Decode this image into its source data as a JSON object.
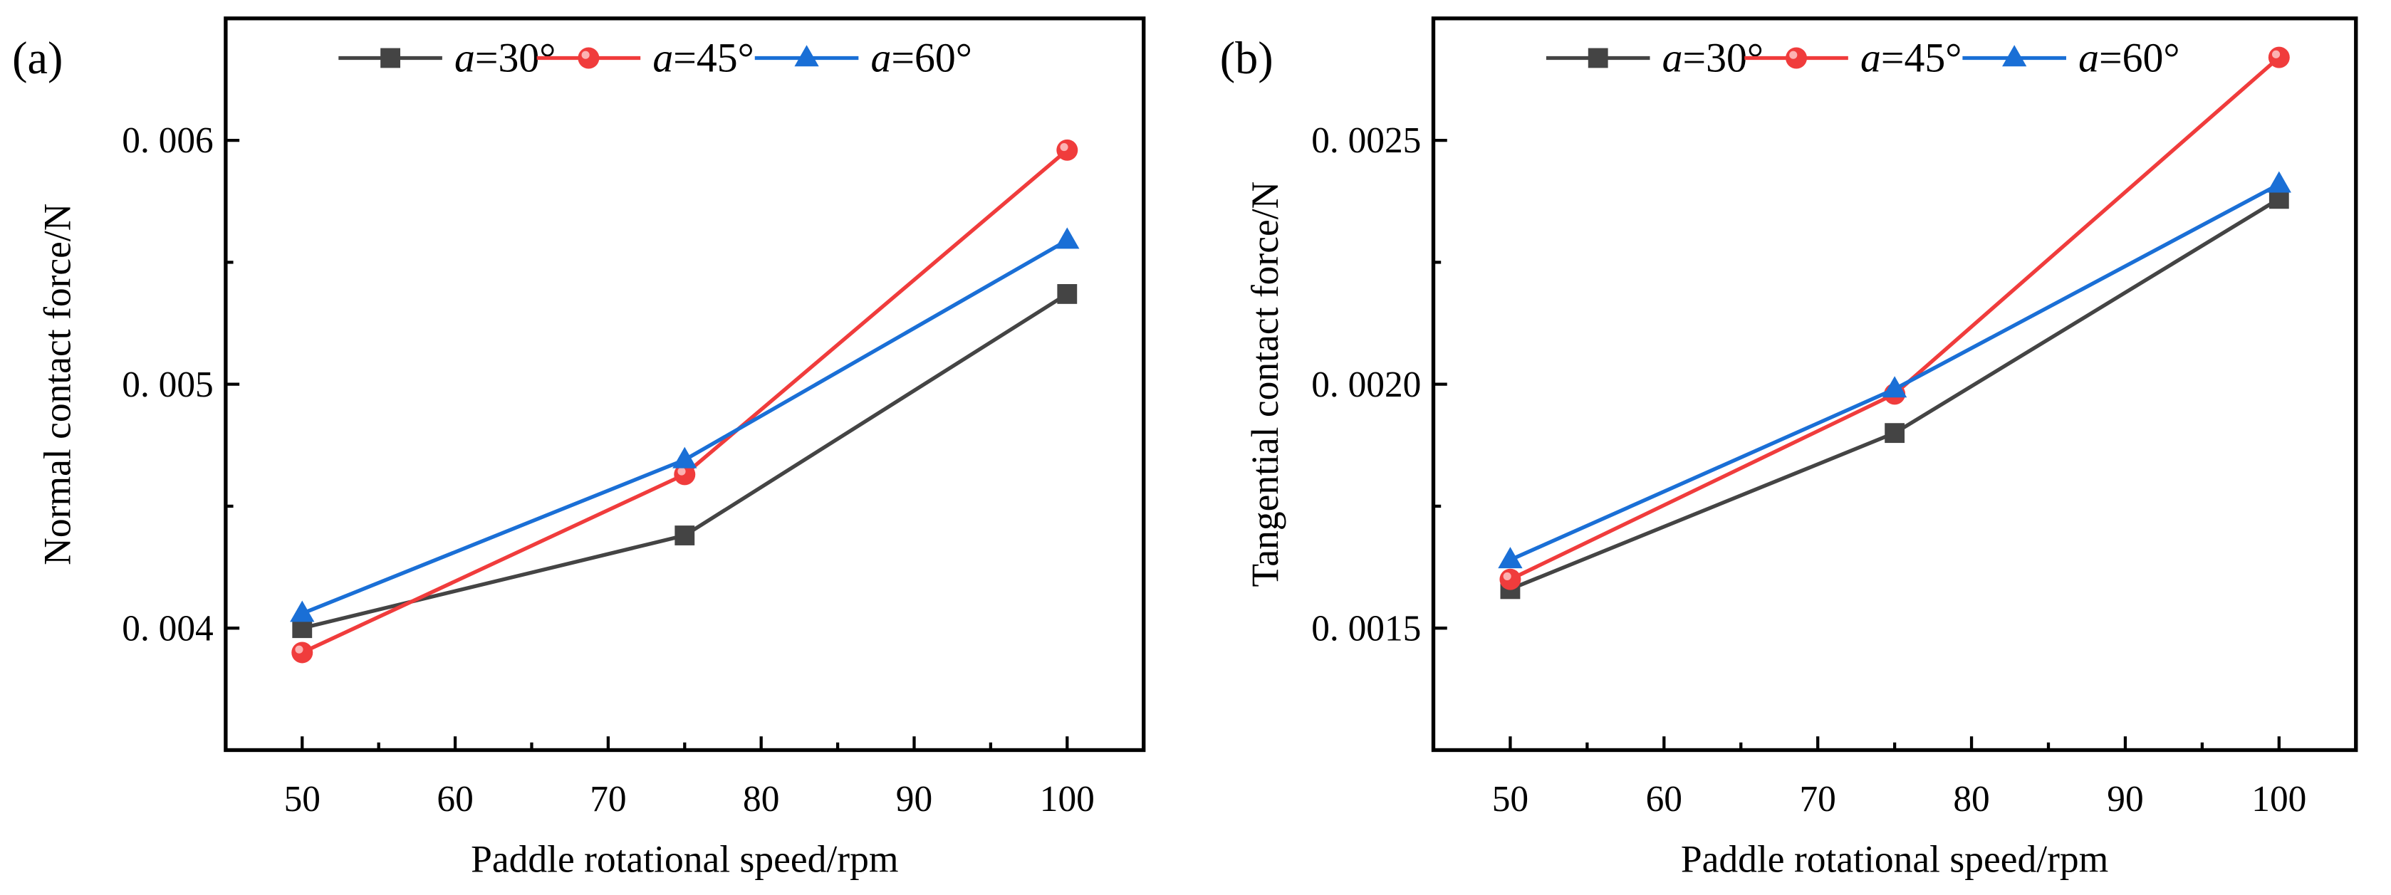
{
  "chart_data": [
    {
      "type": "line",
      "panel_label": "(a)",
      "xlabel": "Paddle rotational speed/rpm",
      "ylabel": "Normal contact force/N",
      "xlim": [
        45,
        105
      ],
      "ylim": [
        0.0035,
        0.0065
      ],
      "xticks": [
        50,
        60,
        70,
        80,
        90,
        100
      ],
      "xtick_labels": [
        "50",
        "60",
        "70",
        "80",
        "90",
        "100"
      ],
      "yticks": [
        0.004,
        0.005,
        0.006
      ],
      "ytick_labels": [
        "0. 004",
        "0. 005",
        "0. 006"
      ],
      "grid": false,
      "legend_position": "top",
      "x": [
        50,
        75,
        100
      ],
      "series": [
        {
          "name": "a=30°",
          "symbol": "a",
          "suffix": "=30°",
          "color": "#444444",
          "marker": "square",
          "values": [
            0.004,
            0.00438,
            0.00537
          ]
        },
        {
          "name": "a=45°",
          "symbol": "a",
          "suffix": "=45°",
          "color": "#f03c3c",
          "marker": "circle",
          "values": [
            0.0039,
            0.00463,
            0.00596
          ]
        },
        {
          "name": "a=60°",
          "symbol": "a",
          "suffix": "=60°",
          "color": "#1a6fd6",
          "marker": "triangle",
          "values": [
            0.00406,
            0.00469,
            0.00559
          ]
        }
      ]
    },
    {
      "type": "line",
      "panel_label": "(b)",
      "xlabel": "Paddle rotational speed/rpm",
      "ylabel": "Tangential contact force/N",
      "xlim": [
        45,
        105
      ],
      "ylim": [
        0.00125,
        0.00275
      ],
      "xticks": [
        50,
        60,
        70,
        80,
        90,
        100
      ],
      "xtick_labels": [
        "50",
        "60",
        "70",
        "80",
        "90",
        "100"
      ],
      "yticks": [
        0.0015,
        0.002,
        0.0025
      ],
      "ytick_labels": [
        "0. 0015",
        "0. 0020",
        "0. 0025"
      ],
      "grid": false,
      "legend_position": "top",
      "x": [
        50,
        75,
        100
      ],
      "series": [
        {
          "name": "a=30°",
          "symbol": "a",
          "suffix": "=30°",
          "color": "#444444",
          "marker": "square",
          "values": [
            0.00158,
            0.0019,
            0.00238
          ]
        },
        {
          "name": "a=45°",
          "symbol": "a",
          "suffix": "=45°",
          "color": "#f03c3c",
          "marker": "circle",
          "values": [
            0.0016,
            0.00198,
            0.00267
          ]
        },
        {
          "name": "a=60°",
          "symbol": "a",
          "suffix": "=60°",
          "color": "#1a6fd6",
          "marker": "triangle",
          "values": [
            0.00164,
            0.00199,
            0.00241
          ]
        }
      ]
    }
  ]
}
